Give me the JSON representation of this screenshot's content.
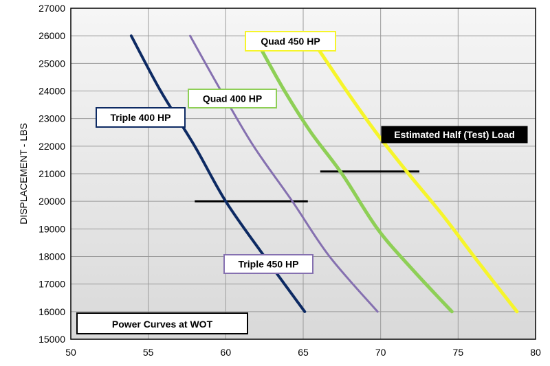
{
  "chart_data": {
    "type": "line",
    "title": "Power Curves at WOT",
    "xlabel": "",
    "ylabel": "DISPLACEMENT - LBS",
    "xlim": [
      50,
      80
    ],
    "ylim": [
      15000,
      27000
    ],
    "x_ticks": [
      "50",
      "55",
      "60",
      "65",
      "70",
      "75",
      "80"
    ],
    "y_ticks": [
      "15000",
      "16000",
      "17000",
      "18000",
      "19000",
      "20000",
      "21000",
      "22000",
      "23000",
      "24000",
      "25000",
      "26000",
      "27000"
    ],
    "grid": true,
    "series": [
      {
        "name": "Triple 400 HP",
        "color": "#0d2a63",
        "x": [
          53.9,
          55.8,
          58.0,
          60.0,
          62.5,
          65.1
        ],
        "y": [
          26000,
          24000,
          22000,
          20000,
          18000,
          16000
        ]
      },
      {
        "name": "Triple 450 HP",
        "color": "#8570b0",
        "x": [
          57.7,
          59.7,
          61.8,
          64.3,
          66.7,
          69.8
        ],
        "y": [
          26000,
          24000,
          22000,
          20000,
          18000,
          16000
        ]
      },
      {
        "name": "Quad 400 HP",
        "color": "#8ecf56",
        "x": [
          62.3,
          63.8,
          65.5,
          67.5,
          69.8,
          72.1,
          74.6
        ],
        "y": [
          25500,
          24000,
          22500,
          21000,
          19000,
          17500,
          16000
        ]
      },
      {
        "name": "Quad 450 HP",
        "color": "#f6f52a",
        "x": [
          66.0,
          67.8,
          69.7,
          71.8,
          74.0,
          76.3,
          78.8
        ],
        "y": [
          25500,
          24000,
          22500,
          21000,
          19500,
          17800,
          16000
        ]
      }
    ],
    "reference_lines": [
      {
        "name": "Triple test load",
        "x": [
          58.0,
          65.3
        ],
        "y": 20000,
        "color": "#000000"
      },
      {
        "name": "Quad test load",
        "x": [
          66.1,
          72.5
        ],
        "y": 21080,
        "color": "#000000"
      }
    ],
    "annotations": [
      {
        "name": "Estimated Half (Test) Load",
        "text": "Estimated Half (Test) Load"
      }
    ]
  }
}
